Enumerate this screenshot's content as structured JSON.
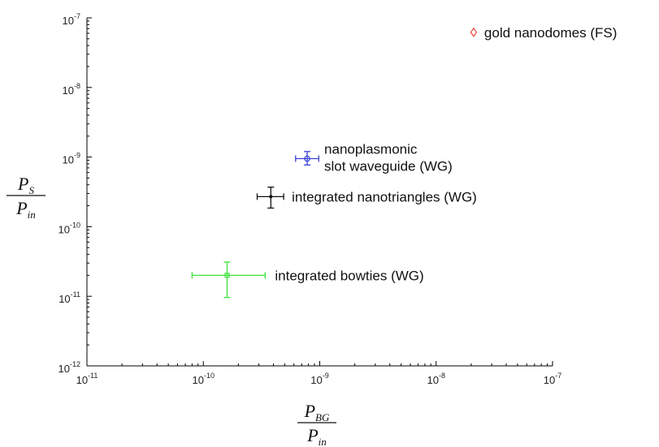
{
  "chart_data": {
    "type": "scatter",
    "x_scale": "log",
    "y_scale": "log",
    "xlim": [
      1e-11,
      1e-07
    ],
    "ylim": [
      1e-12,
      1e-07
    ],
    "x_ticks": [
      {
        "value": 1e-11,
        "base": "10",
        "exp": "-11"
      },
      {
        "value": 1e-10,
        "base": "10",
        "exp": "-10"
      },
      {
        "value": 1e-09,
        "base": "10",
        "exp": "-9"
      },
      {
        "value": 1e-08,
        "base": "10",
        "exp": "-8"
      },
      {
        "value": 1e-07,
        "base": "10",
        "exp": "-7"
      }
    ],
    "y_ticks": [
      {
        "value": 1e-12,
        "base": "10",
        "exp": "-12"
      },
      {
        "value": 1e-11,
        "base": "10",
        "exp": "-11"
      },
      {
        "value": 1e-10,
        "base": "10",
        "exp": "-10"
      },
      {
        "value": 1e-09,
        "base": "10",
        "exp": "-9"
      },
      {
        "value": 1e-08,
        "base": "10",
        "exp": "-8"
      },
      {
        "value": 1e-07,
        "base": "10",
        "exp": "-7"
      }
    ],
    "xlabel": {
      "num_main": "P",
      "num_sub": "BG",
      "den_main": "P",
      "den_sub": "in"
    },
    "ylabel": {
      "num_main": "P",
      "num_sub": "S",
      "den_main": "P",
      "den_sub": "in"
    },
    "grid": false,
    "points": [
      {
        "label": [
          "gold nanodomes (FS)"
        ],
        "x": 2.1e-08,
        "y": 6.2e-08,
        "marker": "diamond",
        "color": "#e8423f"
      },
      {
        "label": [
          "nanoplasmonic",
          "slot waveguide (WG)"
        ],
        "x": 7.8e-10,
        "y": 9.5e-10,
        "marker": "circle",
        "color": "#3a3fd6",
        "x_err": [
          6.2e-10,
          9.8e-10
        ],
        "y_err": [
          7.7e-10,
          1.2e-09
        ]
      },
      {
        "label": [
          "integrated nanotriangles (WG)"
        ],
        "x": 3.8e-10,
        "y": 2.7e-10,
        "marker": "dot",
        "color": "#111111",
        "x_err": [
          2.9e-10,
          4.9e-10
        ],
        "y_err": [
          1.85e-10,
          3.7e-10
        ]
      },
      {
        "label": [
          "integrated bowties (WG)"
        ],
        "x": 1.6e-10,
        "y": 2e-11,
        "marker": "square",
        "color": "#3fe03a",
        "x_err": [
          8e-11,
          3.4e-10
        ],
        "y_err": [
          9.6e-12,
          3.1e-11
        ]
      }
    ]
  }
}
